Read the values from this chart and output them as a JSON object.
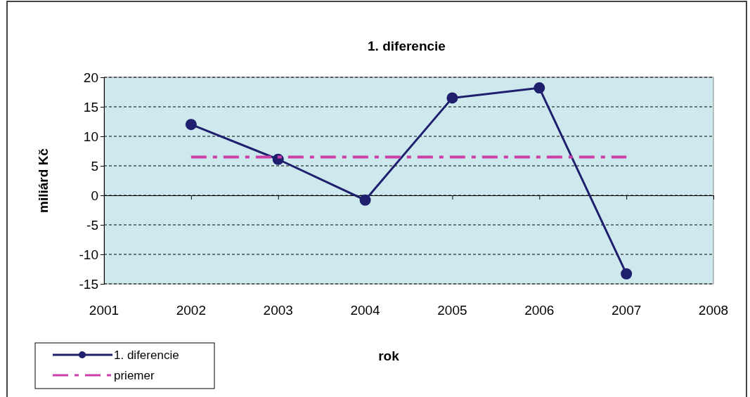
{
  "chart_data": {
    "type": "line",
    "title": "1. diferencie",
    "xlabel": "rok",
    "ylabel": "miliárd Kč",
    "x": [
      2002,
      2003,
      2004,
      2005,
      2006,
      2007
    ],
    "series": [
      {
        "name": "1. diferencie",
        "color": "#1f1f6e",
        "values": [
          12,
          6.1,
          -0.8,
          16.5,
          18.2,
          -13.3
        ],
        "marker": "circle",
        "line_style": "solid"
      },
      {
        "name": "priemer",
        "color": "#cc3fa8",
        "values": [
          6.5,
          6.5,
          6.5,
          6.5,
          6.5,
          6.5
        ],
        "marker": "none",
        "line_style": "dashed"
      }
    ],
    "xlim": [
      2001,
      2008
    ],
    "xticks": [
      2001,
      2002,
      2003,
      2004,
      2005,
      2006,
      2007,
      2008
    ],
    "ylim": [
      -15,
      20
    ],
    "yticks": [
      -15,
      -10,
      -5,
      0,
      5,
      10,
      15,
      20
    ],
    "grid": "y",
    "legend": "bottom left"
  }
}
